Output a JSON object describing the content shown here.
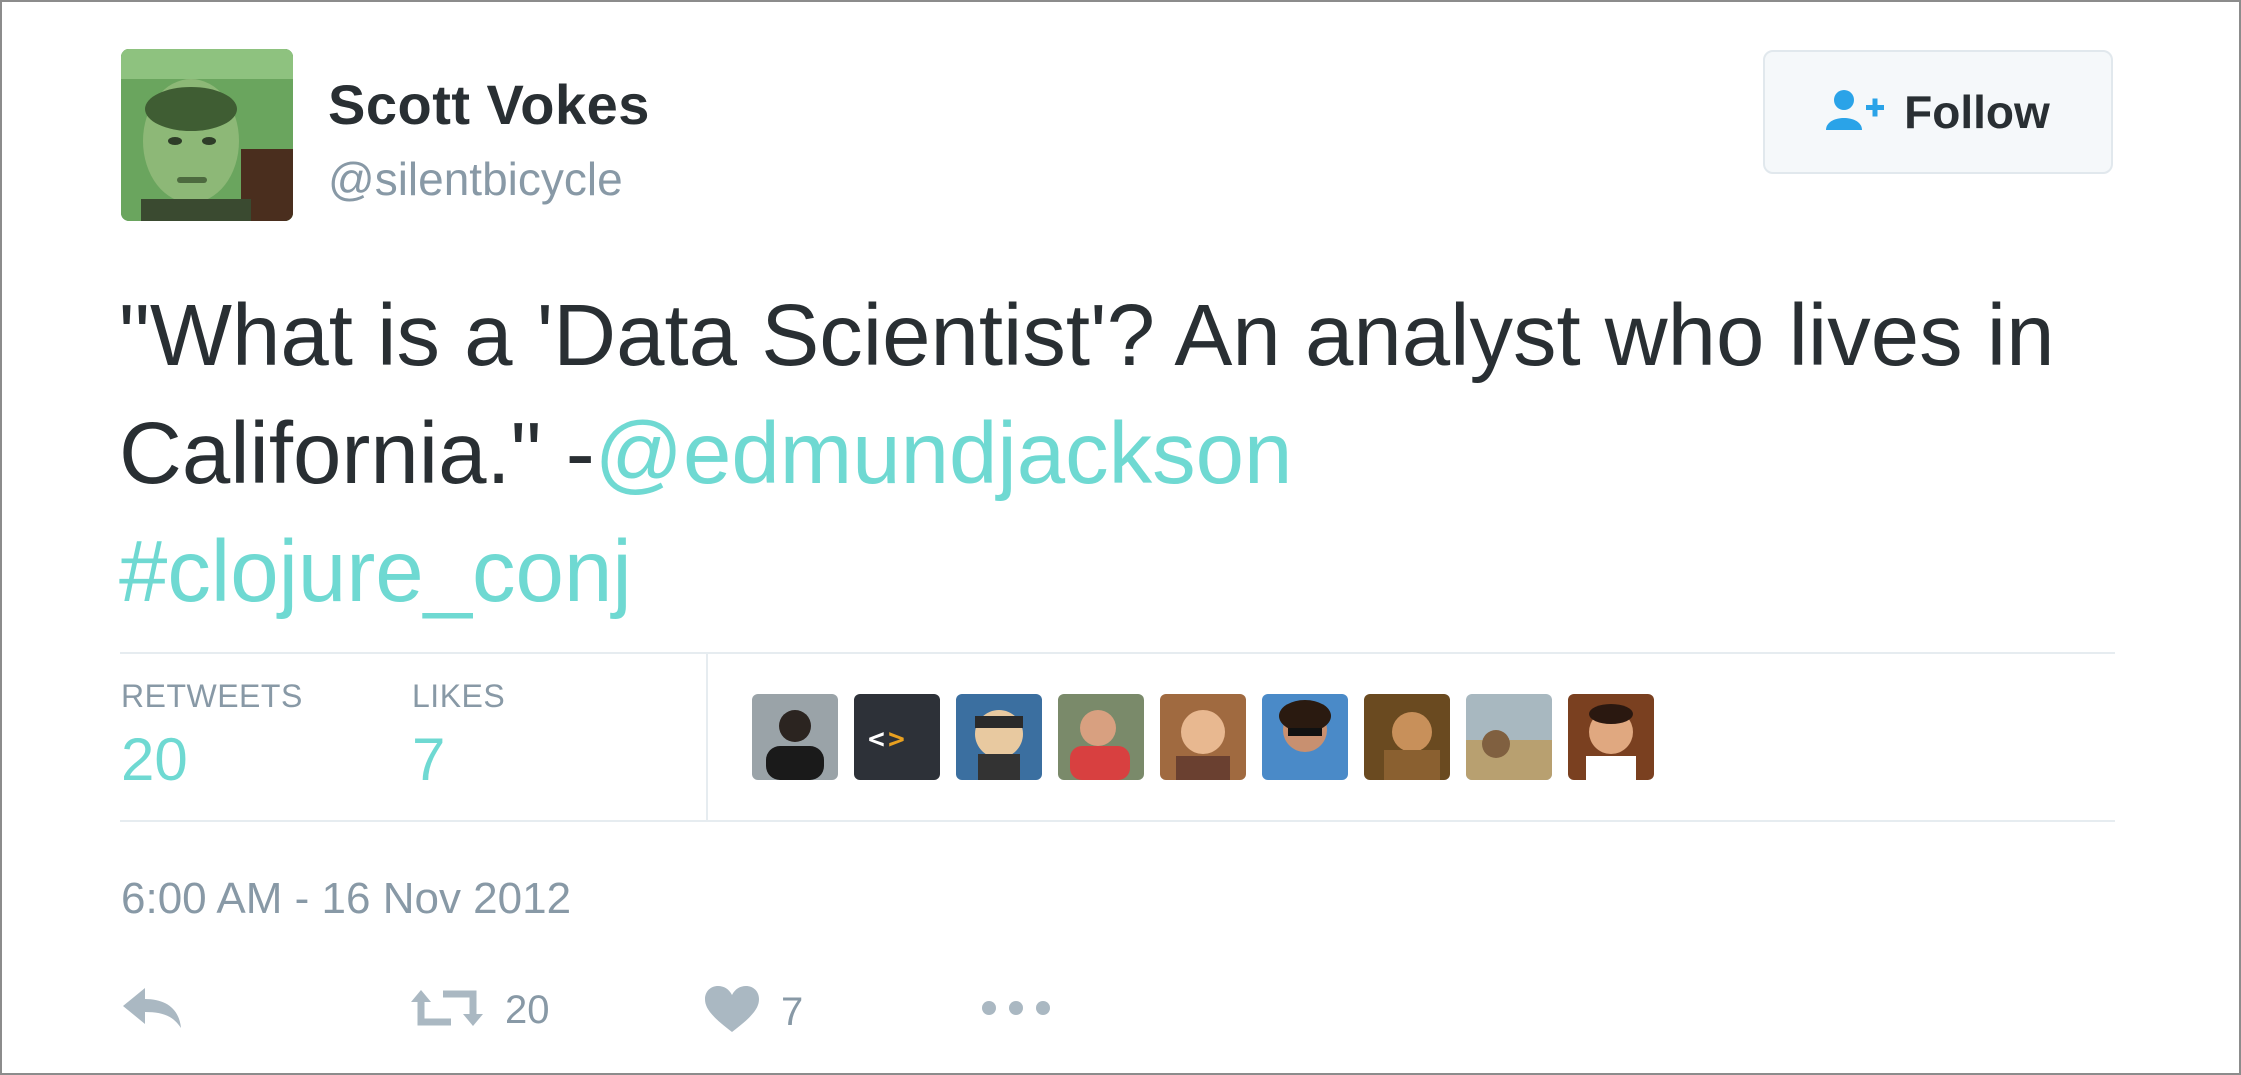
{
  "user": {
    "name": "Scott Vokes",
    "handle": "@silentbicycle"
  },
  "follow_button": {
    "label": "Follow"
  },
  "tweet": {
    "text_prefix": "\"What is a 'Data Scientist'? An analyst who lives in California.\" -",
    "mention": "@edmundjackson",
    "hashtag": "#clojure_conj"
  },
  "stats": {
    "retweets_label": "RETWEETS",
    "retweets_value": "20",
    "likes_label": "LIKES",
    "likes_value": "7"
  },
  "timestamp": "6:00 AM - 16 Nov 2012",
  "actions": {
    "retweet_count": "20",
    "like_count": "7"
  },
  "colors": {
    "link": "#6fd9d2",
    "text": "#292f33",
    "muted": "#8899a6",
    "follow_icon": "#2aa3e8"
  },
  "icons": [
    "follow-user-plus-icon",
    "reply-icon",
    "retweet-icon",
    "heart-icon",
    "more-icon"
  ]
}
